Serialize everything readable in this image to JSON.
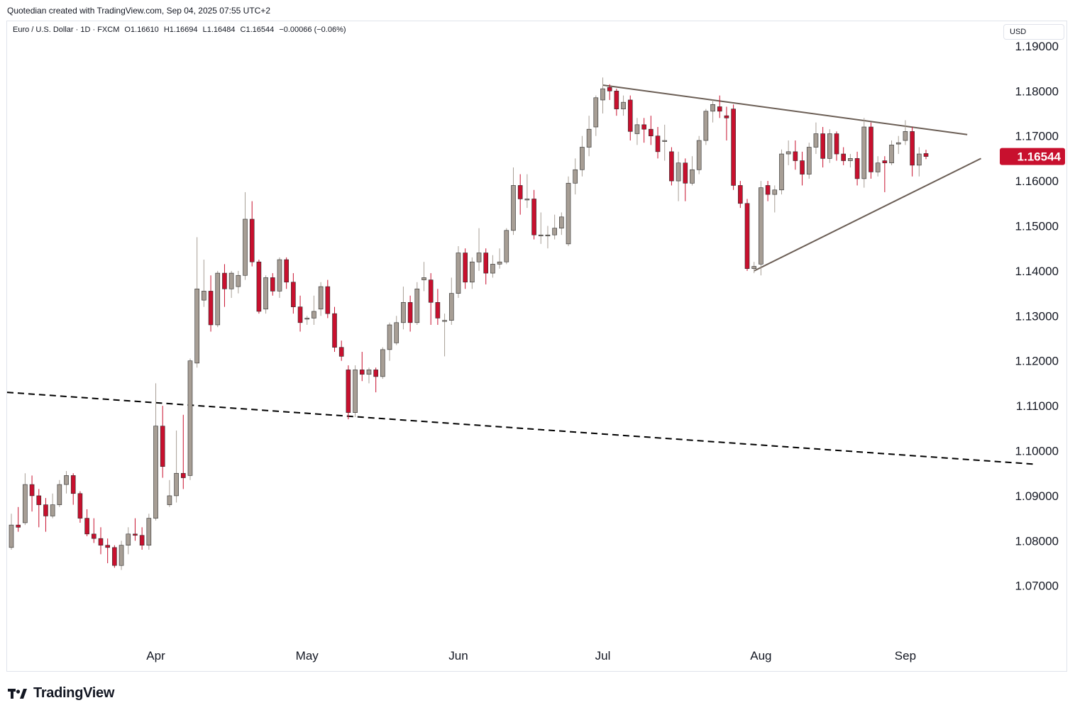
{
  "attribution": "Quotedian created with TradingView.com, Sep 04, 2025 07:55 UTC+2",
  "header": {
    "symbol": "Euro / U.S. Dollar · 1D · FXCM",
    "open": "O1.16610",
    "high": "H1.16694",
    "low": "L1.16484",
    "close": "C1.16544",
    "change": "−0.00066 (−0.06%)"
  },
  "currency_label": "USD",
  "brand": {
    "name": "TradingView",
    "icon": "tradingview-logo-icon"
  },
  "colors": {
    "up": "#a79e95",
    "down": "#c8102e",
    "wick_up": "#a79e95",
    "wick_down": "#c8102e",
    "trendline": "#6b5e55",
    "price_tag": "#c8102e"
  },
  "chart_data": {
    "type": "candlestick",
    "symbol": "EURUSD",
    "timeframe": "1D",
    "x_tick_labels": [
      "Apr",
      "May",
      "Jun",
      "Jul",
      "Aug",
      "Sep"
    ],
    "x_tick_dates": [
      "2025-04-01",
      "2025-05-01",
      "2025-06-02",
      "2025-07-01",
      "2025-08-01",
      "2025-09-01"
    ],
    "y_tick_labels": [
      "1.19000",
      "1.18000",
      "1.17000",
      "1.16000",
      "1.15000",
      "1.14000",
      "1.13000",
      "1.12000",
      "1.11000",
      "1.10000",
      "1.09000",
      "1.08000",
      "1.07000"
    ],
    "ylim": [
      1.0575,
      1.1955
    ],
    "last_price_label": "1.16544",
    "last_price": 1.16544,
    "candles": [
      {
        "date": "2025-03-03",
        "o": 1.0785,
        "h": 1.086,
        "l": 1.078,
        "c": 1.0835
      },
      {
        "date": "2025-03-04",
        "o": 1.0835,
        "h": 1.0875,
        "l": 1.082,
        "c": 1.083
      },
      {
        "date": "2025-03-05",
        "o": 1.084,
        "h": 1.095,
        "l": 1.0835,
        "c": 1.0925
      },
      {
        "date": "2025-03-06",
        "o": 1.0925,
        "h": 1.0945,
        "l": 1.0865,
        "c": 1.09
      },
      {
        "date": "2025-03-07",
        "o": 1.09,
        "h": 1.0915,
        "l": 1.083,
        "c": 1.088
      },
      {
        "date": "2025-03-10",
        "o": 1.088,
        "h": 1.0895,
        "l": 1.082,
        "c": 1.0855
      },
      {
        "date": "2025-03-11",
        "o": 1.0855,
        "h": 1.0905,
        "l": 1.085,
        "c": 1.088
      },
      {
        "date": "2025-03-12",
        "o": 1.088,
        "h": 1.0935,
        "l": 1.0875,
        "c": 1.0925
      },
      {
        "date": "2025-03-13",
        "o": 1.0925,
        "h": 1.0955,
        "l": 1.0905,
        "c": 1.0945
      },
      {
        "date": "2025-03-14",
        "o": 1.0945,
        "h": 1.095,
        "l": 1.088,
        "c": 1.0905
      },
      {
        "date": "2025-03-17",
        "o": 1.0905,
        "h": 1.091,
        "l": 1.084,
        "c": 1.085
      },
      {
        "date": "2025-03-18",
        "o": 1.085,
        "h": 1.087,
        "l": 1.081,
        "c": 1.0815
      },
      {
        "date": "2025-03-19",
        "o": 1.0815,
        "h": 1.085,
        "l": 1.0795,
        "c": 1.0805
      },
      {
        "date": "2025-03-20",
        "o": 1.0805,
        "h": 1.083,
        "l": 1.077,
        "c": 1.079
      },
      {
        "date": "2025-03-21",
        "o": 1.079,
        "h": 1.0805,
        "l": 1.075,
        "c": 1.0785
      },
      {
        "date": "2025-03-24",
        "o": 1.0785,
        "h": 1.079,
        "l": 1.074,
        "c": 1.0745
      },
      {
        "date": "2025-03-25",
        "o": 1.0745,
        "h": 1.08,
        "l": 1.0735,
        "c": 1.079
      },
      {
        "date": "2025-03-26",
        "o": 1.079,
        "h": 1.083,
        "l": 1.077,
        "c": 1.0815
      },
      {
        "date": "2025-03-27",
        "o": 1.0815,
        "h": 1.085,
        "l": 1.08,
        "c": 1.0812
      },
      {
        "date": "2025-03-28",
        "o": 1.0812,
        "h": 1.083,
        "l": 1.078,
        "c": 1.079
      },
      {
        "date": "2025-03-31",
        "o": 1.079,
        "h": 1.086,
        "l": 1.078,
        "c": 1.085
      },
      {
        "date": "2025-04-01",
        "o": 1.085,
        "h": 1.115,
        "l": 1.0845,
        "c": 1.1055
      },
      {
        "date": "2025-04-02",
        "o": 1.1055,
        "h": 1.11,
        "l": 1.094,
        "c": 1.0965
      },
      {
        "date": "2025-04-03",
        "o": 1.088,
        "h": 1.0935,
        "l": 1.0875,
        "c": 1.09
      },
      {
        "date": "2025-04-04",
        "o": 1.09,
        "h": 1.1045,
        "l": 1.0885,
        "c": 1.095
      },
      {
        "date": "2025-04-07",
        "o": 1.095,
        "h": 1.108,
        "l": 1.0915,
        "c": 1.094
      },
      {
        "date": "2025-04-08",
        "o": 1.0945,
        "h": 1.1205,
        "l": 1.0935,
        "c": 1.12
      },
      {
        "date": "2025-04-09",
        "o": 1.1195,
        "h": 1.1475,
        "l": 1.1185,
        "c": 1.136
      },
      {
        "date": "2025-04-10",
        "o": 1.1335,
        "h": 1.1425,
        "l": 1.132,
        "c": 1.1355
      },
      {
        "date": "2025-04-11",
        "o": 1.1355,
        "h": 1.139,
        "l": 1.1265,
        "c": 1.128
      },
      {
        "date": "2025-04-14",
        "o": 1.128,
        "h": 1.14,
        "l": 1.1275,
        "c": 1.1395
      },
      {
        "date": "2025-04-15",
        "o": 1.1395,
        "h": 1.1415,
        "l": 1.132,
        "c": 1.136
      },
      {
        "date": "2025-04-16",
        "o": 1.136,
        "h": 1.14,
        "l": 1.134,
        "c": 1.1395
      },
      {
        "date": "2025-04-17",
        "o": 1.1365,
        "h": 1.14,
        "l": 1.135,
        "c": 1.139
      },
      {
        "date": "2025-04-18",
        "o": 1.139,
        "h": 1.1575,
        "l": 1.138,
        "c": 1.1515
      },
      {
        "date": "2025-04-21",
        "o": 1.1515,
        "h": 1.1555,
        "l": 1.141,
        "c": 1.142
      },
      {
        "date": "2025-04-22",
        "o": 1.142,
        "h": 1.1425,
        "l": 1.1305,
        "c": 1.131
      },
      {
        "date": "2025-04-23",
        "o": 1.1315,
        "h": 1.139,
        "l": 1.1305,
        "c": 1.1385
      },
      {
        "date": "2025-04-24",
        "o": 1.1385,
        "h": 1.1395,
        "l": 1.1345,
        "c": 1.1355
      },
      {
        "date": "2025-04-25",
        "o": 1.1355,
        "h": 1.143,
        "l": 1.134,
        "c": 1.1425
      },
      {
        "date": "2025-04-28",
        "o": 1.1425,
        "h": 1.143,
        "l": 1.136,
        "c": 1.1375
      },
      {
        "date": "2025-04-29",
        "o": 1.1375,
        "h": 1.1395,
        "l": 1.1305,
        "c": 1.132
      },
      {
        "date": "2025-04-30",
        "o": 1.132,
        "h": 1.1345,
        "l": 1.1265,
        "c": 1.1285
      },
      {
        "date": "2025-05-01",
        "o": 1.1295,
        "h": 1.13,
        "l": 1.128,
        "c": 1.1295
      },
      {
        "date": "2025-05-02",
        "o": 1.1295,
        "h": 1.1345,
        "l": 1.128,
        "c": 1.131
      },
      {
        "date": "2025-05-05",
        "o": 1.1315,
        "h": 1.1375,
        "l": 1.13,
        "c": 1.1365
      },
      {
        "date": "2025-05-06",
        "o": 1.1365,
        "h": 1.138,
        "l": 1.1295,
        "c": 1.1305
      },
      {
        "date": "2025-05-07",
        "o": 1.1305,
        "h": 1.132,
        "l": 1.122,
        "c": 1.123
      },
      {
        "date": "2025-05-08",
        "o": 1.123,
        "h": 1.1245,
        "l": 1.12,
        "c": 1.121
      },
      {
        "date": "2025-05-09",
        "o": 1.118,
        "h": 1.119,
        "l": 1.107,
        "c": 1.1085
      },
      {
        "date": "2025-05-12",
        "o": 1.1085,
        "h": 1.119,
        "l": 1.1075,
        "c": 1.118
      },
      {
        "date": "2025-05-13",
        "o": 1.118,
        "h": 1.122,
        "l": 1.1155,
        "c": 1.117
      },
      {
        "date": "2025-05-14",
        "o": 1.117,
        "h": 1.1185,
        "l": 1.115,
        "c": 1.118
      },
      {
        "date": "2025-05-15",
        "o": 1.118,
        "h": 1.1185,
        "l": 1.113,
        "c": 1.1165
      },
      {
        "date": "2025-05-16",
        "o": 1.1165,
        "h": 1.123,
        "l": 1.116,
        "c": 1.1225
      },
      {
        "date": "2025-05-19",
        "o": 1.1225,
        "h": 1.1285,
        "l": 1.12,
        "c": 1.128
      },
      {
        "date": "2025-05-20",
        "o": 1.124,
        "h": 1.13,
        "l": 1.1235,
        "c": 1.1285
      },
      {
        "date": "2025-05-21",
        "o": 1.1285,
        "h": 1.1365,
        "l": 1.127,
        "c": 1.133
      },
      {
        "date": "2025-05-22",
        "o": 1.133,
        "h": 1.1345,
        "l": 1.1265,
        "c": 1.1285
      },
      {
        "date": "2025-05-23",
        "o": 1.1285,
        "h": 1.1375,
        "l": 1.128,
        "c": 1.136
      },
      {
        "date": "2025-05-26",
        "o": 1.138,
        "h": 1.142,
        "l": 1.1355,
        "c": 1.1385
      },
      {
        "date": "2025-05-27",
        "o": 1.138,
        "h": 1.1395,
        "l": 1.128,
        "c": 1.133
      },
      {
        "date": "2025-05-28",
        "o": 1.133,
        "h": 1.136,
        "l": 1.128,
        "c": 1.1295
      },
      {
        "date": "2025-05-29",
        "o": 1.129,
        "h": 1.1305,
        "l": 1.121,
        "c": 1.129
      },
      {
        "date": "2025-05-30",
        "o": 1.129,
        "h": 1.1385,
        "l": 1.128,
        "c": 1.135
      },
      {
        "date": "2025-06-02",
        "o": 1.135,
        "h": 1.1455,
        "l": 1.134,
        "c": 1.144
      },
      {
        "date": "2025-06-03",
        "o": 1.144,
        "h": 1.145,
        "l": 1.136,
        "c": 1.1375
      },
      {
        "date": "2025-06-04",
        "o": 1.1375,
        "h": 1.143,
        "l": 1.136,
        "c": 1.142
      },
      {
        "date": "2025-06-05",
        "o": 1.142,
        "h": 1.1495,
        "l": 1.14,
        "c": 1.144
      },
      {
        "date": "2025-06-06",
        "o": 1.144,
        "h": 1.145,
        "l": 1.137,
        "c": 1.1395
      },
      {
        "date": "2025-06-09",
        "o": 1.1395,
        "h": 1.1435,
        "l": 1.1385,
        "c": 1.1415
      },
      {
        "date": "2025-06-10",
        "o": 1.1415,
        "h": 1.145,
        "l": 1.1405,
        "c": 1.142
      },
      {
        "date": "2025-06-11",
        "o": 1.142,
        "h": 1.1495,
        "l": 1.1415,
        "c": 1.149
      },
      {
        "date": "2025-06-12",
        "o": 1.149,
        "h": 1.163,
        "l": 1.148,
        "c": 1.159
      },
      {
        "date": "2025-06-13",
        "o": 1.159,
        "h": 1.1615,
        "l": 1.1525,
        "c": 1.156
      },
      {
        "date": "2025-06-16",
        "o": 1.156,
        "h": 1.1615,
        "l": 1.154,
        "c": 1.156
      },
      {
        "date": "2025-06-17",
        "o": 1.156,
        "h": 1.158,
        "l": 1.147,
        "c": 1.148
      },
      {
        "date": "2025-06-18",
        "o": 1.148,
        "h": 1.153,
        "l": 1.146,
        "c": 1.148
      },
      {
        "date": "2025-06-19",
        "o": 1.148,
        "h": 1.15,
        "l": 1.145,
        "c": 1.148
      },
      {
        "date": "2025-06-20",
        "o": 1.148,
        "h": 1.1525,
        "l": 1.147,
        "c": 1.1495
      },
      {
        "date": "2025-06-23",
        "o": 1.1495,
        "h": 1.153,
        "l": 1.148,
        "c": 1.152
      },
      {
        "date": "2025-06-24",
        "o": 1.146,
        "h": 1.161,
        "l": 1.1455,
        "c": 1.1595
      },
      {
        "date": "2025-06-25",
        "o": 1.1595,
        "h": 1.165,
        "l": 1.157,
        "c": 1.1625
      },
      {
        "date": "2025-06-26",
        "o": 1.1625,
        "h": 1.17,
        "l": 1.161,
        "c": 1.1675
      },
      {
        "date": "2025-06-27",
        "o": 1.1675,
        "h": 1.1745,
        "l": 1.1655,
        "c": 1.1715
      },
      {
        "date": "2025-06-30",
        "o": 1.172,
        "h": 1.179,
        "l": 1.17,
        "c": 1.1785
      },
      {
        "date": "2025-07-01",
        "o": 1.178,
        "h": 1.183,
        "l": 1.175,
        "c": 1.1805
      },
      {
        "date": "2025-07-02",
        "o": 1.1808,
        "h": 1.1815,
        "l": 1.178,
        "c": 1.18
      },
      {
        "date": "2025-07-03",
        "o": 1.18,
        "h": 1.1805,
        "l": 1.1745,
        "c": 1.176
      },
      {
        "date": "2025-07-04",
        "o": 1.176,
        "h": 1.179,
        "l": 1.1745,
        "c": 1.1775
      },
      {
        "date": "2025-07-07",
        "o": 1.178,
        "h": 1.179,
        "l": 1.169,
        "c": 1.171
      },
      {
        "date": "2025-07-08",
        "o": 1.1705,
        "h": 1.174,
        "l": 1.168,
        "c": 1.1725
      },
      {
        "date": "2025-07-09",
        "o": 1.1725,
        "h": 1.174,
        "l": 1.1685,
        "c": 1.1715
      },
      {
        "date": "2025-07-10",
        "o": 1.1715,
        "h": 1.1745,
        "l": 1.168,
        "c": 1.17
      },
      {
        "date": "2025-07-11",
        "o": 1.17,
        "h": 1.172,
        "l": 1.165,
        "c": 1.1665
      },
      {
        "date": "2025-07-14",
        "o": 1.169,
        "h": 1.1725,
        "l": 1.1645,
        "c": 1.169
      },
      {
        "date": "2025-07-15",
        "o": 1.1665,
        "h": 1.1675,
        "l": 1.159,
        "c": 1.16
      },
      {
        "date": "2025-07-16",
        "o": 1.16,
        "h": 1.1665,
        "l": 1.1555,
        "c": 1.164
      },
      {
        "date": "2025-07-17",
        "o": 1.164,
        "h": 1.165,
        "l": 1.1555,
        "c": 1.1595
      },
      {
        "date": "2025-07-18",
        "o": 1.1595,
        "h": 1.1655,
        "l": 1.159,
        "c": 1.1625
      },
      {
        "date": "2025-07-21",
        "o": 1.1625,
        "h": 1.17,
        "l": 1.1615,
        "c": 1.169
      },
      {
        "date": "2025-07-22",
        "o": 1.169,
        "h": 1.176,
        "l": 1.168,
        "c": 1.1755
      },
      {
        "date": "2025-07-23",
        "o": 1.1755,
        "h": 1.178,
        "l": 1.173,
        "c": 1.177
      },
      {
        "date": "2025-07-24",
        "o": 1.1765,
        "h": 1.179,
        "l": 1.174,
        "c": 1.1755
      },
      {
        "date": "2025-07-25",
        "o": 1.1745,
        "h": 1.1765,
        "l": 1.169,
        "c": 1.174
      },
      {
        "date": "2025-07-28",
        "o": 1.176,
        "h": 1.177,
        "l": 1.158,
        "c": 1.159
      },
      {
        "date": "2025-07-29",
        "o": 1.159,
        "h": 1.16,
        "l": 1.154,
        "c": 1.155
      },
      {
        "date": "2025-07-30",
        "o": 1.155,
        "h": 1.156,
        "l": 1.14,
        "c": 1.1405
      },
      {
        "date": "2025-07-31",
        "o": 1.1405,
        "h": 1.142,
        "l": 1.1395,
        "c": 1.141
      },
      {
        "date": "2025-08-01",
        "o": 1.1415,
        "h": 1.16,
        "l": 1.139,
        "c": 1.1585
      },
      {
        "date": "2025-08-04",
        "o": 1.159,
        "h": 1.16,
        "l": 1.1555,
        "c": 1.157
      },
      {
        "date": "2025-08-05",
        "o": 1.157,
        "h": 1.159,
        "l": 1.153,
        "c": 1.158
      },
      {
        "date": "2025-08-06",
        "o": 1.158,
        "h": 1.167,
        "l": 1.157,
        "c": 1.166
      },
      {
        "date": "2025-08-07",
        "o": 1.166,
        "h": 1.169,
        "l": 1.1635,
        "c": 1.1665
      },
      {
        "date": "2025-08-08",
        "o": 1.1665,
        "h": 1.169,
        "l": 1.1625,
        "c": 1.1645
      },
      {
        "date": "2025-08-11",
        "o": 1.1645,
        "h": 1.1665,
        "l": 1.159,
        "c": 1.1615
      },
      {
        "date": "2025-08-12",
        "o": 1.1615,
        "h": 1.1685,
        "l": 1.1605,
        "c": 1.1675
      },
      {
        "date": "2025-08-13",
        "o": 1.1675,
        "h": 1.173,
        "l": 1.166,
        "c": 1.1705
      },
      {
        "date": "2025-08-14",
        "o": 1.1705,
        "h": 1.172,
        "l": 1.163,
        "c": 1.165
      },
      {
        "date": "2025-08-15",
        "o": 1.165,
        "h": 1.1715,
        "l": 1.164,
        "c": 1.1705
      },
      {
        "date": "2025-08-18",
        "o": 1.1705,
        "h": 1.171,
        "l": 1.1645,
        "c": 1.166
      },
      {
        "date": "2025-08-19",
        "o": 1.166,
        "h": 1.1675,
        "l": 1.1635,
        "c": 1.1645
      },
      {
        "date": "2025-08-20",
        "o": 1.1645,
        "h": 1.166,
        "l": 1.163,
        "c": 1.165
      },
      {
        "date": "2025-08-21",
        "o": 1.165,
        "h": 1.1665,
        "l": 1.159,
        "c": 1.1605
      },
      {
        "date": "2025-08-22",
        "o": 1.1605,
        "h": 1.174,
        "l": 1.1585,
        "c": 1.172
      },
      {
        "date": "2025-08-25",
        "o": 1.172,
        "h": 1.173,
        "l": 1.1605,
        "c": 1.162
      },
      {
        "date": "2025-08-26",
        "o": 1.162,
        "h": 1.1655,
        "l": 1.161,
        "c": 1.164
      },
      {
        "date": "2025-08-27",
        "o": 1.1645,
        "h": 1.1655,
        "l": 1.1575,
        "c": 1.164
      },
      {
        "date": "2025-08-28",
        "o": 1.164,
        "h": 1.169,
        "l": 1.1635,
        "c": 1.168
      },
      {
        "date": "2025-08-29",
        "o": 1.1682,
        "h": 1.17,
        "l": 1.166,
        "c": 1.1685
      },
      {
        "date": "2025-09-01",
        "o": 1.169,
        "h": 1.1735,
        "l": 1.168,
        "c": 1.171
      },
      {
        "date": "2025-09-02",
        "o": 1.171,
        "h": 1.172,
        "l": 1.161,
        "c": 1.1635
      },
      {
        "date": "2025-09-03",
        "o": 1.1635,
        "h": 1.1675,
        "l": 1.161,
        "c": 1.166
      },
      {
        "date": "2025-09-04",
        "o": 1.1661,
        "h": 1.16694,
        "l": 1.16484,
        "c": 1.16544
      }
    ],
    "trendlines": [
      {
        "style": "solid",
        "color": "#6b5e55",
        "from": {
          "date": "2025-07-01",
          "price": 1.1813
        },
        "to": {
          "date": "2025-09-12",
          "price": 1.1703
        }
      },
      {
        "style": "solid",
        "color": "#6b5e55",
        "from": {
          "date": "2025-07-31",
          "price": 1.14
        },
        "to": {
          "date": "2025-09-16",
          "price": 1.165
        }
      },
      {
        "style": "dashed",
        "color": "#000000",
        "from": {
          "date": "2025-03-03",
          "price": 1.113
        },
        "to": {
          "date": "2025-09-27",
          "price": 1.097
        }
      }
    ]
  }
}
